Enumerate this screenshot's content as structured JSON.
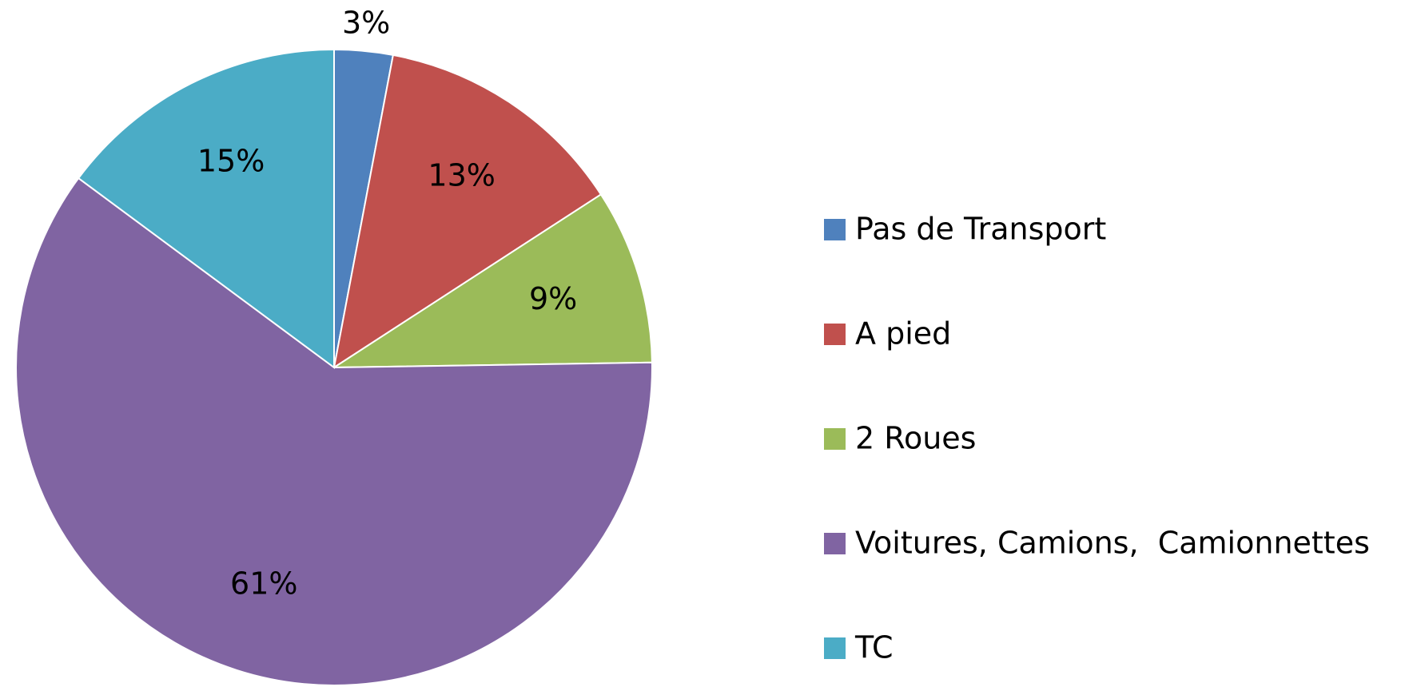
{
  "chart_data": {
    "type": "pie",
    "categories": [
      "Pas de Transport",
      "A pied",
      "2 Roues",
      "Voitures, Camions,  Camionnettes",
      "TC"
    ],
    "values": [
      3,
      13,
      9,
      61,
      15
    ],
    "value_labels": [
      "3%",
      "13%",
      "9%",
      "61%",
      "15%"
    ],
    "colors": [
      "#4f81bd",
      "#c0504d",
      "#9bbb59",
      "#8064a2",
      "#4bacc6"
    ],
    "legend": "right"
  }
}
